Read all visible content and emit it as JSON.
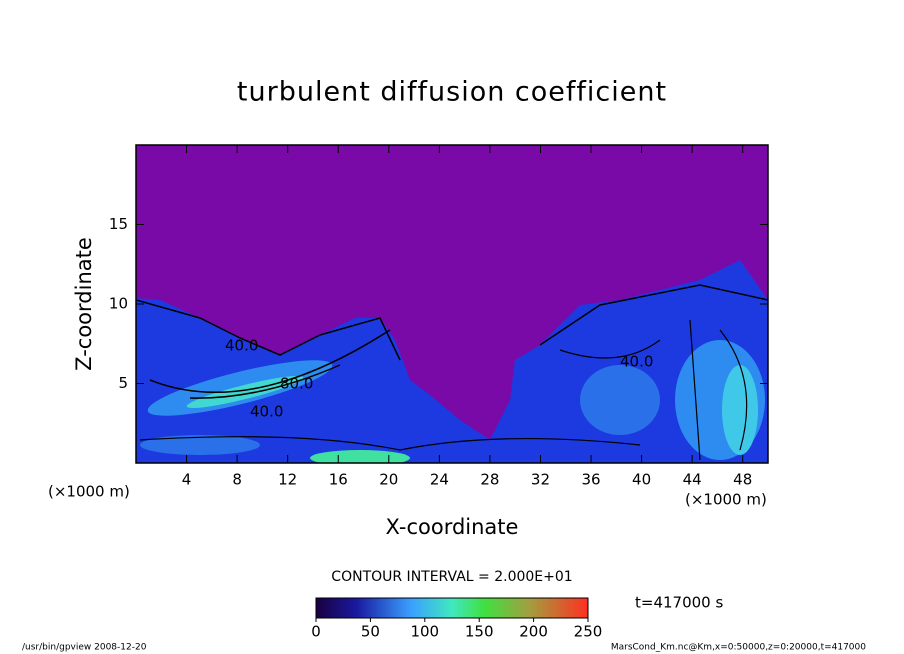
{
  "chart_data": {
    "type": "contour",
    "title": "turbulent diffusion coefficient",
    "xlabel": "X-coordinate",
    "ylabel": "Z-coordinate",
    "x_unit": "(×1000 m)",
    "xlim": [
      0,
      50
    ],
    "xticks": [
      4,
      8,
      12,
      16,
      20,
      24,
      28,
      32,
      36,
      40,
      44,
      48
    ],
    "ylim": [
      0,
      20
    ],
    "yticks": [
      5,
      10,
      15
    ],
    "contour_labels": [
      "40.0",
      "80.0",
      "40.0",
      "40.0"
    ],
    "contour_interval": "CONTOUR INTERVAL = 2.000E+01",
    "time_label": "t=417000 s",
    "colorbar": {
      "lim": [
        0,
        250
      ],
      "ticks": [
        0,
        50,
        100,
        150,
        200,
        250
      ]
    },
    "footer_left": "/usr/bin/gpview   2008-12-20",
    "footer_right": "MarsCond_Km.nc@Km,x=0:50000,z=0:20000,t=417000"
  }
}
